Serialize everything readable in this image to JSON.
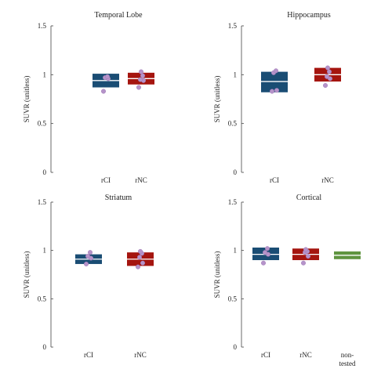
{
  "chart_data": [
    {
      "type": "box",
      "title": "Temporal Lobe",
      "ylabel": "SUVR (unitless)",
      "ylim": [
        0,
        1.5
      ],
      "yticks": [
        "0",
        "0.5",
        "1",
        "1.5"
      ],
      "categories": [
        [
          "rCI"
        ],
        [
          "rNC"
        ]
      ],
      "boxes": [
        {
          "q1": 0.87,
          "median": 0.94,
          "q3": 1.01,
          "points": [
            0.83,
            0.96,
            0.97,
            0.98
          ]
        },
        {
          "q1": 0.9,
          "median": 0.96,
          "q3": 1.02,
          "points": [
            0.87,
            0.94,
            0.95,
            0.99,
            1.03
          ]
        }
      ]
    },
    {
      "type": "box",
      "title": "Hippocampus",
      "ylabel": "SUVR (unitless)",
      "ylim": [
        0,
        1.5
      ],
      "yticks": [
        "0",
        "0.5",
        "1",
        "1.5"
      ],
      "categories": [
        [
          "rCI"
        ],
        [
          "rNC"
        ]
      ],
      "boxes": [
        {
          "q1": 0.82,
          "median": 0.93,
          "q3": 1.03,
          "points": [
            0.83,
            0.84,
            1.02,
            1.04
          ]
        },
        {
          "q1": 0.93,
          "median": 1.0,
          "q3": 1.07,
          "points": [
            0.89,
            0.96,
            0.98,
            1.03,
            1.07
          ]
        }
      ]
    },
    {
      "type": "box",
      "title": "Striatum",
      "ylabel": "SUVR (unitless)",
      "ylim": [
        0,
        1.5
      ],
      "yticks": [
        "0",
        "0.5",
        "1",
        "1.5"
      ],
      "categories": [
        [
          "rCI"
        ],
        [
          "rNC"
        ]
      ],
      "boxes": [
        {
          "q1": 0.86,
          "median": 0.91,
          "q3": 0.96,
          "points": [
            0.86,
            0.92,
            0.94,
            0.98
          ]
        },
        {
          "q1": 0.84,
          "median": 0.91,
          "q3": 0.98,
          "points": [
            0.83,
            0.87,
            0.93,
            0.97,
            0.99
          ]
        }
      ]
    },
    {
      "type": "box",
      "title": "Cortical",
      "ylabel": "SUVR (unitless)",
      "ylim": [
        0,
        1.5
      ],
      "yticks": [
        "0",
        "0.5",
        "1",
        "1.5"
      ],
      "categories": [
        [
          "rCI"
        ],
        [
          "rNC"
        ],
        [
          "non-",
          "tested"
        ]
      ],
      "boxes": [
        {
          "q1": 0.9,
          "median": 0.96,
          "q3": 1.03,
          "points": [
            0.87,
            0.96,
            0.98,
            1.02
          ]
        },
        {
          "q1": 0.9,
          "median": 0.96,
          "q3": 1.02,
          "points": [
            0.87,
            0.94,
            0.98,
            0.99,
            1.01
          ]
        },
        {
          "q1": 0.91,
          "median": 0.95,
          "q3": 0.99,
          "points": []
        }
      ]
    }
  ],
  "colors": {
    "rCI_fill": "#1a4d74",
    "rNC_fill": "#a5150f",
    "nontested_fill": "#5f9440",
    "median_line": "#ffffff",
    "point": "#b593c9",
    "axis": "#444444"
  }
}
